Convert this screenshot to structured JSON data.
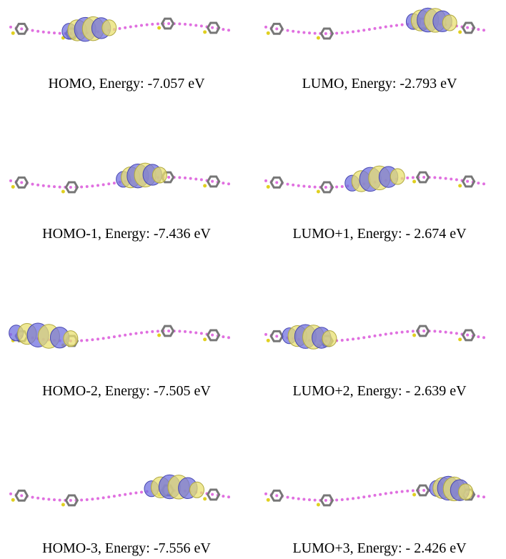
{
  "panels": [
    {
      "caption": "HOMO, Energy: -7.057 eV"
    },
    {
      "caption": "LUMO, Energy: -2.793 eV"
    },
    {
      "caption": "HOMO-1, Energy: -7.436 eV"
    },
    {
      "caption": "LUMO+1, Energy: - 2.674 eV"
    },
    {
      "caption": "HOMO-2, Energy: -7.505 eV"
    },
    {
      "caption": "LUMO+2, Energy: - 2.639 eV"
    },
    {
      "caption": "HOMO-3, Energy: -7.556 eV"
    },
    {
      "caption": "LUMO+3, Energy: - 2.426 eV"
    }
  ]
}
